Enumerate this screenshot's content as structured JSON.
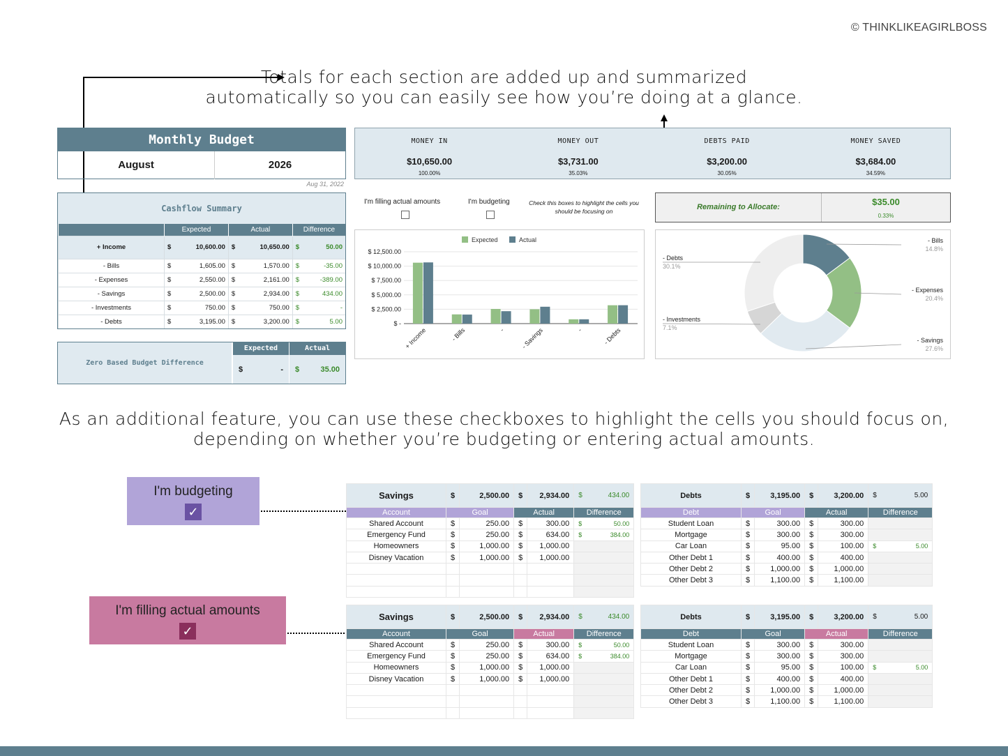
{
  "copyright": "© THINKLIKEAGIRLBOSS",
  "caption_top": [
    "Totals for each section are added up and summarized",
    "automatically so you can easily see how you’re doing at a glance."
  ],
  "caption_mid": [
    "As an additional feature, you can use these checkboxes to highlight the cells you should focus on,",
    "depending on whether you’re budgeting or entering actual amounts."
  ],
  "monthly_budget": {
    "title": "Monthly Budget",
    "month": "August",
    "year": "2026",
    "date": "Aug 31, 2022"
  },
  "cashflow": {
    "title": "Cashflow Summary",
    "headers": [
      "Expected",
      "Actual",
      "Difference"
    ],
    "rows": [
      {
        "label": "+ Income",
        "expected": "10,600.00",
        "actual": "10,650.00",
        "diff": "50.00"
      },
      {
        "label": "- Bills",
        "expected": "1,605.00",
        "actual": "1,570.00",
        "diff": "-35.00"
      },
      {
        "label": "- Expenses",
        "expected": "2,550.00",
        "actual": "2,161.00",
        "diff": "-389.00"
      },
      {
        "label": "- Savings",
        "expected": "2,500.00",
        "actual": "2,934.00",
        "diff": "434.00"
      },
      {
        "label": "- Investments",
        "expected": "750.00",
        "actual": "750.00",
        "diff": "-"
      },
      {
        "label": "- Debts",
        "expected": "3,195.00",
        "actual": "3,200.00",
        "diff": "5.00"
      }
    ],
    "currency": "$"
  },
  "zero_based": {
    "title": "Zero Based Budget Difference",
    "expected_label": "Expected",
    "actual_label": "Actual",
    "expected": "-",
    "actual": "35.00"
  },
  "summary": [
    {
      "label": "MONEY IN",
      "value": "$10,650.00",
      "pct": "100.00%"
    },
    {
      "label": "MONEY OUT",
      "value": "$3,731.00",
      "pct": "35.03%"
    },
    {
      "label": "DEBTS PAID",
      "value": "$3,200.00",
      "pct": "30.05%"
    },
    {
      "label": "MONEY SAVED",
      "value": "$3,684.00",
      "pct": "34.59%"
    }
  ],
  "checkboxes": {
    "actual_label": "I'm filling actual amounts",
    "budgeting_label": "I'm budgeting",
    "note": "Check this boxes to highlight the cells you should be focusing on"
  },
  "remaining": {
    "label": "Remaining to Allocate:",
    "value": "$35.00",
    "pct": "0.33%"
  },
  "chart_data": [
    {
      "type": "bar",
      "categories": [
        "+ Income",
        "- Bills",
        "-",
        "- Savings",
        "-",
        "- Debts"
      ],
      "series": [
        {
          "name": "Expected",
          "color": "#93bf85",
          "values": [
            10600,
            1605,
            2550,
            2500,
            750,
            3195
          ]
        },
        {
          "name": "Actual",
          "color": "#5e7f8e",
          "values": [
            10650,
            1570,
            2161,
            2934,
            750,
            3200
          ]
        }
      ],
      "yticks": [
        "$ 12,500.00",
        "$ 10,000.00",
        "$ 7,500.00",
        "$ 5,000.00",
        "$ 2,500.00",
        "$ -"
      ],
      "ylim": [
        0,
        12500
      ]
    },
    {
      "type": "pie",
      "slices": [
        {
          "label": "- Bills",
          "pct": "14.8%",
          "value": 14.8,
          "color": "#5e7f8e"
        },
        {
          "label": "- Expenses",
          "pct": "20.4%",
          "value": 20.4,
          "color": "#93bf85"
        },
        {
          "label": "- Savings",
          "pct": "27.6%",
          "value": 27.6,
          "color": "#e1eaf0"
        },
        {
          "label": "- Investments",
          "pct": "7.1%",
          "value": 7.1,
          "color": "#d6d6d6"
        },
        {
          "label": "- Debts",
          "pct": "30.1%",
          "value": 30.1,
          "color": "#eeeeee"
        }
      ]
    }
  ],
  "badges": {
    "budgeting": "I'm budgeting",
    "actual": "I'm filling actual amounts",
    "tick": "✓"
  },
  "savings": {
    "title": "Savings",
    "goal": "2,500.00",
    "actual": "2,934.00",
    "diff": "434.00",
    "headers": [
      "Account",
      "Goal",
      "Actual",
      "Difference"
    ],
    "rows": [
      {
        "name": "Shared Account",
        "goal": "250.00",
        "actual": "300.00",
        "diff": "50.00"
      },
      {
        "name": "Emergency Fund",
        "goal": "250.00",
        "actual": "634.00",
        "diff": "384.00"
      },
      {
        "name": "Homeowners",
        "goal": "1,000.00",
        "actual": "1,000.00",
        "diff": ""
      },
      {
        "name": "Disney Vacation",
        "goal": "1,000.00",
        "actual": "1,000.00",
        "diff": ""
      }
    ]
  },
  "debts": {
    "title": "Debts",
    "goal": "3,195.00",
    "actual": "3,200.00",
    "diff": "5.00",
    "headers": [
      "Debt",
      "Goal",
      "Actual",
      "Difference"
    ],
    "rows": [
      {
        "name": "Student Loan",
        "goal": "300.00",
        "actual": "300.00",
        "diff": ""
      },
      {
        "name": "Mortgage",
        "goal": "300.00",
        "actual": "300.00",
        "diff": ""
      },
      {
        "name": "Car Loan",
        "goal": "95.00",
        "actual": "100.00",
        "diff": "5.00"
      },
      {
        "name": "Other Debt 1",
        "goal": "400.00",
        "actual": "400.00",
        "diff": ""
      },
      {
        "name": "Other Debt 2",
        "goal": "1,000.00",
        "actual": "1,000.00",
        "diff": ""
      },
      {
        "name": "Other Debt 3",
        "goal": "1,100.00",
        "actual": "1,100.00",
        "diff": ""
      }
    ]
  },
  "colors": {
    "slate": "#5e7f8e",
    "lightblue": "#dfe9ef",
    "green": "#93bf85",
    "purple": "#b1a4d8",
    "purple_dark": "#6a52a3",
    "pink": "#c87aa0",
    "pink_dark": "#8a2f5c"
  }
}
